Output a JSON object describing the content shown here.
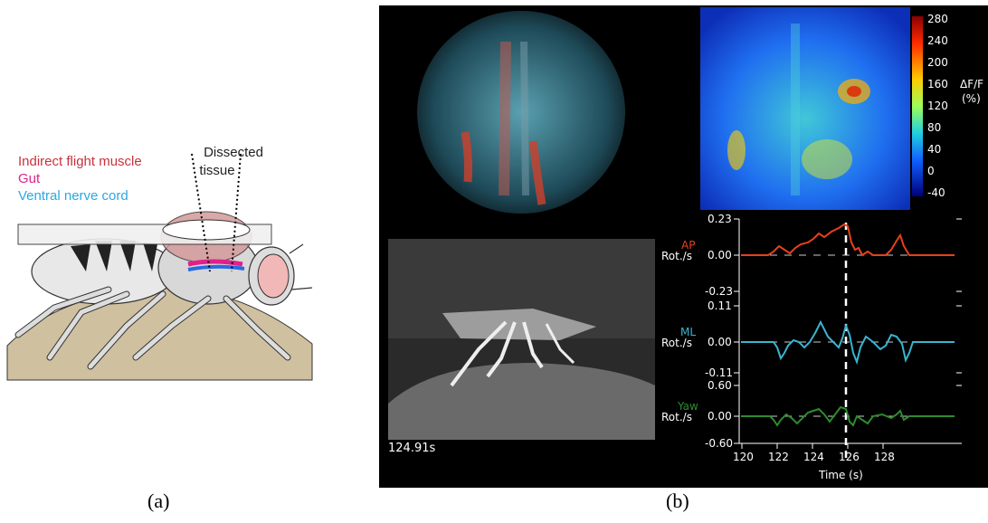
{
  "panel_a": {
    "dissected_label_line1": "Dissected",
    "dissected_label_line2": "tissue",
    "legend": [
      {
        "label": "Indirect flight muscle",
        "color": "#c8323c"
      },
      {
        "label": "Gut",
        "color": "#e0208c"
      },
      {
        "label": "Ventral nerve cord",
        "color": "#2aa8e0"
      }
    ],
    "caption": "(a)"
  },
  "panel_b": {
    "colorbar": {
      "ticks": [
        "280",
        "240",
        "200",
        "160",
        "120",
        "80",
        "40",
        "0",
        "-40"
      ],
      "label_line1": "ΔF/F",
      "label_line2": "(%)"
    },
    "video_timestamp": "124.91s",
    "traces": [
      {
        "name": "AP",
        "unit": "Rot./s",
        "color": "#e8401c",
        "ticks": [
          "0.23",
          "0.00",
          "-0.23"
        ]
      },
      {
        "name": "ML",
        "unit": "Rot./s",
        "color": "#3ab4d0",
        "ticks": [
          "0.11",
          "0.00",
          "-0.11"
        ]
      },
      {
        "name": "Yaw",
        "unit": "Rot./s",
        "color": "#2e8b2e",
        "ticks": [
          "0.60",
          "0.00",
          "-0.60"
        ]
      }
    ],
    "x_ticks": [
      "120",
      "122",
      "124",
      "126",
      "128"
    ],
    "x_label": "Time (s)",
    "caption": "(b)"
  }
}
